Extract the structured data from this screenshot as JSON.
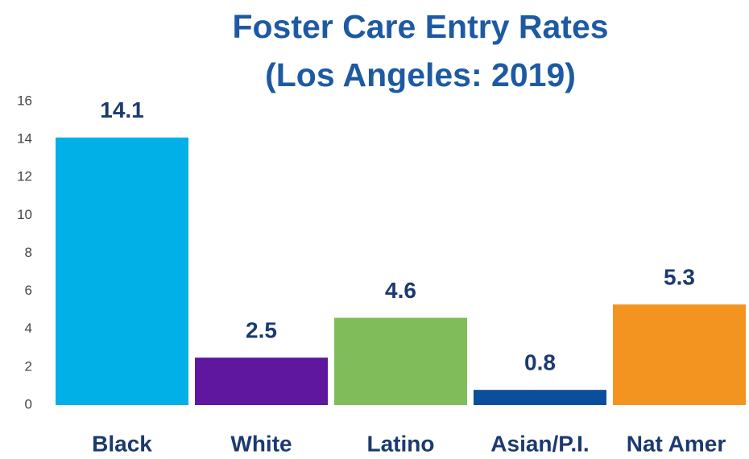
{
  "chart_data": {
    "type": "bar",
    "title": [
      "Foster Care Entry Rates",
      "(Los Angeles: 2019)"
    ],
    "categories": [
      "Black",
      "White",
      "Latino",
      "Asian/P.I.",
      "Nat Amer"
    ],
    "values": [
      14.1,
      2.5,
      4.6,
      0.8,
      5.3
    ],
    "colors": [
      "#00b0e6",
      "#5f17a0",
      "#80bd5a",
      "#0b4f9c",
      "#f39320"
    ],
    "ylim": [
      0,
      16
    ],
    "yticks": [
      0,
      2,
      4,
      6,
      8,
      10,
      12,
      14,
      16
    ],
    "grid": false
  }
}
